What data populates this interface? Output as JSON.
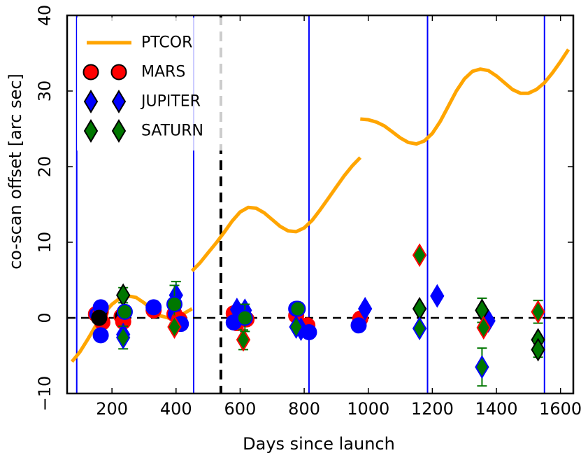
{
  "chart_data": {
    "type": "scatter",
    "xlabel": "Days since launch",
    "ylabel": "co-scan offset [arc sec]",
    "xlim": [
      60,
      1640
    ],
    "ylim": [
      -10,
      40
    ],
    "xticks": [
      200,
      400,
      600,
      800,
      1000,
      1200,
      1400,
      1600
    ],
    "yticks": [
      -10,
      0,
      10,
      20,
      30,
      40
    ],
    "ytick_labels": [
      "−10",
      "0",
      "10",
      "20",
      "30",
      "40"
    ],
    "legend_position": "top-left",
    "colors": {
      "ptcor": "#FFA500",
      "mars": "#FF0000",
      "jupiter": "#0000FF",
      "saturn": "#007700",
      "vline": "#0000FF"
    },
    "vertical_lines": [
      90,
      455,
      815,
      1185,
      1550
    ],
    "dashed_vline": 540,
    "zero_line": 0,
    "ptcor_segments": [
      [
        [
          75,
          -5.8
        ],
        [
          100,
          -4.5
        ],
        [
          125,
          -2.8
        ],
        [
          150,
          -1.0
        ],
        [
          175,
          0.6
        ],
        [
          200,
          1.8
        ],
        [
          225,
          2.6
        ],
        [
          250,
          2.9
        ],
        [
          275,
          2.7
        ],
        [
          300,
          2.0
        ],
        [
          325,
          1.1
        ],
        [
          350,
          0.3
        ],
        [
          375,
          0.0
        ],
        [
          400,
          0.2
        ],
        [
          425,
          0.6
        ],
        [
          450,
          1.2
        ]
      ],
      [
        [
          450,
          6.2
        ],
        [
          475,
          7.3
        ],
        [
          500,
          8.6
        ],
        [
          525,
          9.9
        ],
        [
          550,
          11.3
        ],
        [
          575,
          12.8
        ],
        [
          600,
          14.0
        ],
        [
          625,
          14.6
        ],
        [
          650,
          14.5
        ],
        [
          675,
          13.9
        ],
        [
          700,
          13.0
        ],
        [
          725,
          12.1
        ],
        [
          750,
          11.5
        ],
        [
          775,
          11.4
        ],
        [
          800,
          11.9
        ],
        [
          825,
          12.9
        ],
        [
          850,
          14.3
        ],
        [
          875,
          15.8
        ],
        [
          900,
          17.3
        ],
        [
          925,
          18.8
        ],
        [
          950,
          20.1
        ],
        [
          975,
          21.2
        ]
      ],
      [
        [
          975,
          26.3
        ],
        [
          1000,
          26.2
        ],
        [
          1025,
          25.9
        ],
        [
          1050,
          25.4
        ],
        [
          1075,
          24.6
        ],
        [
          1100,
          23.8
        ],
        [
          1125,
          23.2
        ],
        [
          1150,
          23.0
        ],
        [
          1175,
          23.4
        ],
        [
          1200,
          24.4
        ],
        [
          1225,
          26.0
        ],
        [
          1250,
          28.0
        ],
        [
          1275,
          30.0
        ],
        [
          1300,
          31.6
        ],
        [
          1325,
          32.6
        ],
        [
          1350,
          32.9
        ],
        [
          1375,
          32.7
        ],
        [
          1400,
          32.0
        ],
        [
          1425,
          31.1
        ],
        [
          1450,
          30.2
        ],
        [
          1475,
          29.7
        ],
        [
          1500,
          29.7
        ],
        [
          1525,
          30.2
        ],
        [
          1550,
          31.1
        ],
        [
          1575,
          32.4
        ],
        [
          1600,
          33.9
        ],
        [
          1625,
          35.5
        ]
      ]
    ],
    "series": [
      {
        "name": "MARS",
        "marker": "circle",
        "points": [
          {
            "x": 150,
            "y": 0.5,
            "fill": "#0000FF",
            "edge": "#FF0000"
          },
          {
            "x": 165,
            "y": 0.8,
            "fill": "#000000",
            "edge": "#FF0000"
          },
          {
            "x": 170,
            "y": -0.6,
            "fill": "#FF0000",
            "edge": "#FF0000"
          },
          {
            "x": 230,
            "y": 0.2,
            "fill": "#000000",
            "edge": "#FF0000"
          },
          {
            "x": 235,
            "y": -0.5,
            "fill": "#FF0000",
            "edge": "#FF0000"
          },
          {
            "x": 330,
            "y": 1.0,
            "fill": "#FF0000",
            "edge": "#FF0000"
          },
          {
            "x": 395,
            "y": 0.5,
            "fill": "#0000FF",
            "edge": "#FF0000"
          },
          {
            "x": 410,
            "y": -0.2,
            "fill": "#FF0000",
            "edge": "#FF0000"
          },
          {
            "x": 580,
            "y": 0.6,
            "fill": "#FF0000",
            "edge": "#FF0000"
          },
          {
            "x": 590,
            "y": -0.7,
            "fill": "#FF0000",
            "edge": "#FF0000"
          },
          {
            "x": 620,
            "y": -0.2,
            "fill": "#FF0000",
            "edge": "#FF0000"
          },
          {
            "x": 775,
            "y": 0.3,
            "fill": "#FF0000",
            "edge": "#FF0000"
          },
          {
            "x": 810,
            "y": -1.0,
            "fill": "#FF0000",
            "edge": "#FF0000"
          },
          {
            "x": 975,
            "y": -0.1,
            "fill": "#FF0000",
            "edge": "#FF0000"
          }
        ]
      },
      {
        "name": "JUPITER",
        "marker": "diamond",
        "points": [
          {
            "x": 165,
            "y": 1.4,
            "fill": "#0000FF",
            "edge": "#0000FF",
            "shape": "circle"
          },
          {
            "x": 165,
            "y": -2.3,
            "fill": "#0000FF",
            "edge": "#0000FF",
            "shape": "circle"
          },
          {
            "x": 235,
            "y": -2.2,
            "fill": "#0000FF",
            "edge": "#0000FF"
          },
          {
            "x": 330,
            "y": 1.4,
            "fill": "#0000FF",
            "edge": "#0000FF",
            "shape": "circle"
          },
          {
            "x": 400,
            "y": 3.0,
            "fill": "#0000FF",
            "edge": "#0000FF",
            "err": 1.8
          },
          {
            "x": 415,
            "y": -0.8,
            "fill": "#0000FF",
            "edge": "#0000FF",
            "shape": "circle"
          },
          {
            "x": 580,
            "y": -0.6,
            "fill": "#0000FF",
            "edge": "#0000FF",
            "shape": "circle"
          },
          {
            "x": 590,
            "y": 1.1,
            "fill": "#0000FF",
            "edge": "#0000FF"
          },
          {
            "x": 615,
            "y": 1.0,
            "fill": "#0000FF",
            "edge": "#0000FF"
          },
          {
            "x": 775,
            "y": 1.2,
            "fill": "#0000FF",
            "edge": "#0000FF",
            "shape": "circle"
          },
          {
            "x": 790,
            "y": -1.5,
            "fill": "#0000FF",
            "edge": "#0000FF"
          },
          {
            "x": 815,
            "y": -1.9,
            "fill": "#0000FF",
            "edge": "#0000FF",
            "shape": "circle"
          },
          {
            "x": 970,
            "y": -1.0,
            "fill": "#0000FF",
            "edge": "#0000FF",
            "shape": "circle"
          },
          {
            "x": 990,
            "y": 1.2,
            "fill": "#0000FF",
            "edge": "#0000FF"
          },
          {
            "x": 1215,
            "y": 2.9,
            "fill": "#0000FF",
            "edge": "#0000FF"
          },
          {
            "x": 1355,
            "y": -6.5,
            "fill": "#007700",
            "edge": "#0000FF",
            "err": 2.5
          },
          {
            "x": 1375,
            "y": -0.4,
            "fill": "#0000FF",
            "edge": "#0000FF"
          }
        ]
      },
      {
        "name": "SATURN",
        "marker": "diamond",
        "points": [
          {
            "x": 160,
            "y": 0.0,
            "fill": "#000000",
            "edge": "#000000",
            "shape": "circle"
          },
          {
            "x": 235,
            "y": 3.0,
            "fill": "#007700",
            "edge": "#000000",
            "err": 1.0
          },
          {
            "x": 235,
            "y": -2.6,
            "fill": "#007700",
            "edge": "#0000FF",
            "err": 1.5
          },
          {
            "x": 240,
            "y": 0.8,
            "fill": "#007700",
            "edge": "#0000FF",
            "shape": "circle"
          },
          {
            "x": 395,
            "y": 1.8,
            "fill": "#007700",
            "edge": "#0000FF",
            "shape": "circle",
            "err": 2.5
          },
          {
            "x": 395,
            "y": -1.2,
            "fill": "#007700",
            "edge": "#FF0000"
          },
          {
            "x": 610,
            "y": -2.9,
            "fill": "#007700",
            "edge": "#FF0000",
            "err": 1.3
          },
          {
            "x": 615,
            "y": 0.0,
            "fill": "#007700",
            "edge": "#0000FF",
            "shape": "circle",
            "err": 1.8
          },
          {
            "x": 775,
            "y": -1.2,
            "fill": "#007700",
            "edge": "#0000FF"
          },
          {
            "x": 780,
            "y": 1.2,
            "fill": "#007700",
            "edge": "#0000FF",
            "shape": "circle"
          },
          {
            "x": 1160,
            "y": 8.3,
            "fill": "#007700",
            "edge": "#FF0000"
          },
          {
            "x": 1160,
            "y": 1.2,
            "fill": "#007700",
            "edge": "#000000"
          },
          {
            "x": 1160,
            "y": -1.4,
            "fill": "#007700",
            "edge": "#0000FF"
          },
          {
            "x": 1355,
            "y": 1.0,
            "fill": "#007700",
            "edge": "#000000",
            "err": 1.6
          },
          {
            "x": 1360,
            "y": -1.3,
            "fill": "#007700",
            "edge": "#FF0000"
          },
          {
            "x": 1530,
            "y": 0.8,
            "fill": "#007700",
            "edge": "#FF0000",
            "err": 1.5
          },
          {
            "x": 1530,
            "y": -2.9,
            "fill": "#007700",
            "edge": "#000000"
          },
          {
            "x": 1530,
            "y": -4.2,
            "fill": "#007700",
            "edge": "#000000",
            "err": 1.0
          }
        ]
      }
    ],
    "legend": [
      {
        "label": "PTCOR",
        "type": "line",
        "color": "#FFA500"
      },
      {
        "label": "MARS",
        "type": "circle",
        "fill": "#FF0000",
        "edge": "#000000"
      },
      {
        "label": "JUPITER",
        "type": "diamond",
        "fill": "#0000FF",
        "edge": "#000000"
      },
      {
        "label": "SATURN",
        "type": "diamond",
        "fill": "#007700",
        "edge": "#000000"
      }
    ]
  }
}
